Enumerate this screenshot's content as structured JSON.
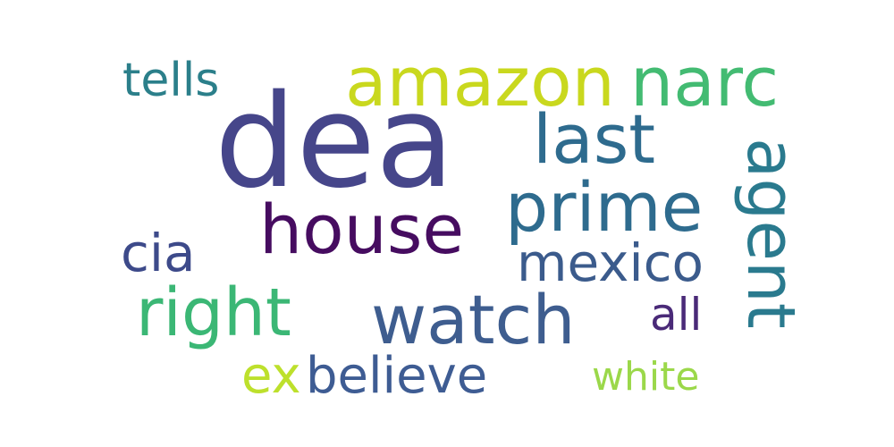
{
  "wordcloud": {
    "background": "#ffffff",
    "words": {
      "dea": {
        "text": "dea",
        "color": "#46468a"
      },
      "amazon": {
        "text": "amazon",
        "color": "#c9d81e"
      },
      "narc": {
        "text": "narc",
        "color": "#43bb72"
      },
      "tells": {
        "text": "tells",
        "color": "#2b7f8a"
      },
      "last": {
        "text": "last",
        "color": "#2e6b8e"
      },
      "prime": {
        "text": "prime",
        "color": "#2e6b8e"
      },
      "house": {
        "text": "house",
        "color": "#460c60"
      },
      "cia": {
        "text": "cia",
        "color": "#3d4a8a"
      },
      "mexico": {
        "text": "mexico",
        "color": "#3b5b8c"
      },
      "right": {
        "text": "right",
        "color": "#3bb775"
      },
      "watch": {
        "text": "watch",
        "color": "#3e5d8f"
      },
      "all": {
        "text": "all",
        "color": "#4a2a78"
      },
      "agent": {
        "text": "agent",
        "color": "#2a7a8e"
      },
      "ex": {
        "text": "ex",
        "color": "#bde02c"
      },
      "believe": {
        "text": "believe",
        "color": "#3e5c93"
      },
      "white": {
        "text": "white",
        "color": "#9bd84a"
      }
    }
  }
}
